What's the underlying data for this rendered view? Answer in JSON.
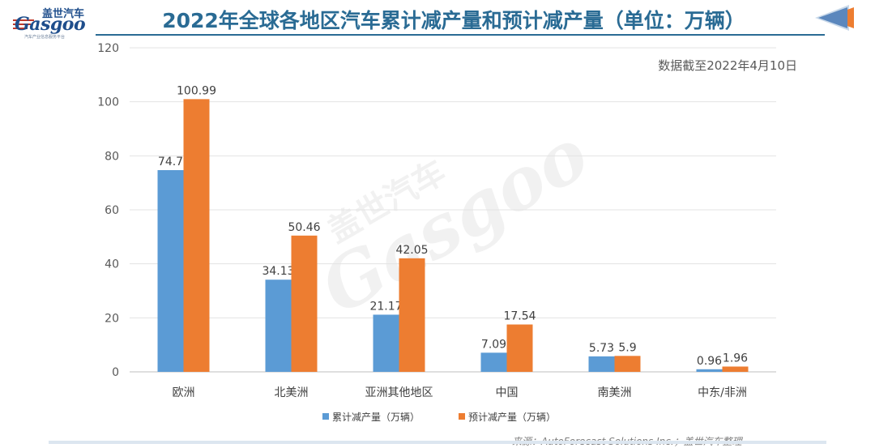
{
  "header": {
    "logo_cn": "盖世汽车",
    "logo_en": "Gasgoo",
    "logo_sub": "汽车产业信息服务平台",
    "title": "2022年全球各地区汽车累计减产量和预计减产量（单位：万辆）"
  },
  "note": "数据截至2022年4月10日",
  "source": "来源：AutoForecast Solutions Inc.；盖世汽车整理",
  "chart_data": {
    "type": "bar",
    "categories": [
      "欧洲",
      "北美洲",
      "亚洲其他地区",
      "中国",
      "南美洲",
      "中东/非洲"
    ],
    "series": [
      {
        "name": "累计减产量（万辆）",
        "values": [
          74.7,
          34.13,
          21.17,
          7.09,
          5.73,
          0.96
        ],
        "labels": [
          "74.7",
          "34.13",
          "21.17",
          "7.09",
          "5.73",
          "0.96"
        ],
        "color": "#5b9bd5"
      },
      {
        "name": "预计减产量（万辆）",
        "values": [
          100.99,
          50.46,
          42.05,
          17.54,
          5.9,
          1.96
        ],
        "labels": [
          "100.99",
          "50.46",
          "42.05",
          "17.54",
          "5.9",
          "1.96"
        ],
        "color": "#ed7d31"
      }
    ],
    "yticks": [
      "0",
      "20",
      "40",
      "60",
      "80",
      "100",
      "120"
    ],
    "ylim": [
      0,
      120
    ],
    "grid": true,
    "legend_position": "bottom"
  },
  "colors": {
    "title": "#2a6b94",
    "accent_orange": "#ed7d31",
    "accent_blue": "#5b9bd5"
  }
}
